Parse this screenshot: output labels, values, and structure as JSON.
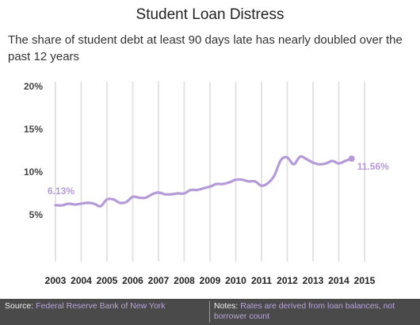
{
  "header": {
    "title": "Student Loan Distress",
    "subtitle": "The share of student debt at least 90 days late has nearly doubled over the past 12 years"
  },
  "footer": {
    "source_key": "Source:",
    "source_value": "Federal Reserve Bank of New York",
    "notes_key": "Notes:",
    "notes_value": "Rates are derived from loan balances, not borrower count"
  },
  "colors": {
    "line": "#b59ad8",
    "grid": "#e3e3e3",
    "footer_bg": "#4a4a4a"
  },
  "chart_data": {
    "type": "line",
    "title": "Student Loan Distress",
    "xlabel": "",
    "ylabel": "",
    "xlim": [
      2003,
      2015
    ],
    "ylim": [
      0,
      20
    ],
    "grid": true,
    "y_ticks": [
      {
        "value": 5,
        "label": "5%"
      },
      {
        "value": 10,
        "label": "10%"
      },
      {
        "value": 15,
        "label": "15%"
      },
      {
        "value": 20,
        "label": "20%"
      }
    ],
    "x_ticks": [
      {
        "value": 2003,
        "label": "2003"
      },
      {
        "value": 2004,
        "label": "2004"
      },
      {
        "value": 2005,
        "label": "2005"
      },
      {
        "value": 2006,
        "label": "2006"
      },
      {
        "value": 2007,
        "label": "2007"
      },
      {
        "value": 2008,
        "label": "2008"
      },
      {
        "value": 2009,
        "label": "2009"
      },
      {
        "value": 2010,
        "label": "2010"
      },
      {
        "value": 2011,
        "label": "2011"
      },
      {
        "value": 2012,
        "label": "2012"
      },
      {
        "value": 2013,
        "label": "2013"
      },
      {
        "value": 2014,
        "label": "2014"
      },
      {
        "value": 2015,
        "label": "2015"
      }
    ],
    "series": [
      {
        "values": [
          {
            "x": 2003.0,
            "y": 6.13
          },
          {
            "x": 2003.25,
            "y": 6.1
          },
          {
            "x": 2003.5,
            "y": 6.3
          },
          {
            "x": 2003.75,
            "y": 6.2
          },
          {
            "x": 2004.0,
            "y": 6.3
          },
          {
            "x": 2004.25,
            "y": 6.4
          },
          {
            "x": 2004.5,
            "y": 6.3
          },
          {
            "x": 2004.75,
            "y": 6.0
          },
          {
            "x": 2005.0,
            "y": 6.8
          },
          {
            "x": 2005.25,
            "y": 6.8
          },
          {
            "x": 2005.5,
            "y": 6.4
          },
          {
            "x": 2005.75,
            "y": 6.5
          },
          {
            "x": 2006.0,
            "y": 7.1
          },
          {
            "x": 2006.25,
            "y": 7.0
          },
          {
            "x": 2006.5,
            "y": 7.0
          },
          {
            "x": 2006.75,
            "y": 7.4
          },
          {
            "x": 2007.0,
            "y": 7.6
          },
          {
            "x": 2007.25,
            "y": 7.4
          },
          {
            "x": 2007.5,
            "y": 7.4
          },
          {
            "x": 2007.75,
            "y": 7.5
          },
          {
            "x": 2008.0,
            "y": 7.5
          },
          {
            "x": 2008.25,
            "y": 7.9
          },
          {
            "x": 2008.5,
            "y": 7.9
          },
          {
            "x": 2008.75,
            "y": 8.1
          },
          {
            "x": 2009.0,
            "y": 8.3
          },
          {
            "x": 2009.25,
            "y": 8.6
          },
          {
            "x": 2009.5,
            "y": 8.6
          },
          {
            "x": 2009.75,
            "y": 8.8
          },
          {
            "x": 2010.0,
            "y": 9.1
          },
          {
            "x": 2010.25,
            "y": 9.1
          },
          {
            "x": 2010.5,
            "y": 8.9
          },
          {
            "x": 2010.75,
            "y": 8.9
          },
          {
            "x": 2011.0,
            "y": 8.4
          },
          {
            "x": 2011.25,
            "y": 8.7
          },
          {
            "x": 2011.5,
            "y": 9.6
          },
          {
            "x": 2011.75,
            "y": 11.4
          },
          {
            "x": 2012.0,
            "y": 11.7
          },
          {
            "x": 2012.25,
            "y": 10.9
          },
          {
            "x": 2012.5,
            "y": 11.8
          },
          {
            "x": 2012.75,
            "y": 11.5
          },
          {
            "x": 2013.0,
            "y": 11.1
          },
          {
            "x": 2013.25,
            "y": 10.9
          },
          {
            "x": 2013.5,
            "y": 11.0
          },
          {
            "x": 2013.75,
            "y": 11.3
          },
          {
            "x": 2014.0,
            "y": 11.0
          },
          {
            "x": 2014.25,
            "y": 11.3
          },
          {
            "x": 2014.5,
            "y": 11.56
          }
        ]
      }
    ],
    "annotations": [
      {
        "x": 2003.0,
        "y": 6.13,
        "label": "6.13%"
      },
      {
        "x": 2014.5,
        "y": 11.56,
        "label": "11.56%"
      }
    ]
  }
}
